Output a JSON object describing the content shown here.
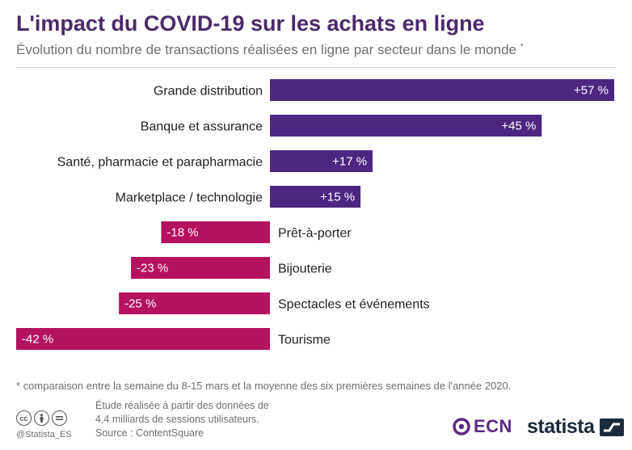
{
  "header": {
    "title": "L'impact du COVID-19 sur les achats en ligne",
    "subtitle": "Évolution du nombre de transactions réalisées en ligne par secteur dans le monde",
    "subtitle_mark": "*"
  },
  "chart_data": {
    "type": "bar",
    "orientation": "horizontal",
    "unit": "%",
    "categories": [
      "Grande distribution",
      "Banque et assurance",
      "Santé, pharmacie et parapharmacie",
      "Marketplace / technologie",
      "Prêt-à-porter",
      "Bijouterie",
      "Spectacles et événements",
      "Tourisme"
    ],
    "values": [
      57,
      45,
      17,
      15,
      -18,
      -23,
      -25,
      -42
    ],
    "value_labels": [
      "+57 %",
      "+45 %",
      "+17 %",
      "+15 %",
      "-18 %",
      "-23 %",
      "-25 %",
      "-42 %"
    ],
    "xlim": [
      -42,
      57
    ],
    "colors": {
      "positive": "#4b2782",
      "negative": "#b5125e"
    },
    "grid": false,
    "legend": "none"
  },
  "footer": {
    "footnote": "* comparaison entre la semaine du 8-15 mars et la moyenne des six premières semaines de l'année 2020.",
    "study_line1": "Étude réalisée à partir des données de",
    "study_line2": "4,4 milliards de sessions utilisateurs.",
    "source": "Source : ContentSquare",
    "handle": "@Statista_ES",
    "license_icons": [
      "creative-commons-icon",
      "attribution-person-icon",
      "no-derivatives-icon"
    ],
    "brand_ecn": "ECN",
    "brand_statista": "statista"
  }
}
